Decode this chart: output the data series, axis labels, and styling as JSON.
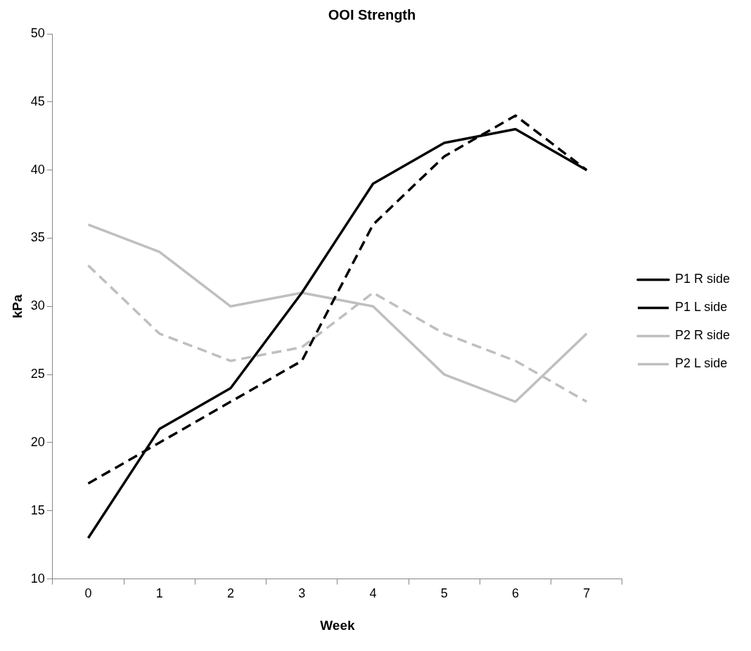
{
  "chart_data": {
    "type": "line",
    "title": "OOI Strength",
    "xlabel": "Week",
    "ylabel": "kPa",
    "categories": [
      "0",
      "1",
      "2",
      "3",
      "4",
      "5",
      "6",
      "7"
    ],
    "series": [
      {
        "name": "P1 R side",
        "color": "#000000",
        "line_style": "solid",
        "values": [
          13,
          21,
          24,
          31,
          39,
          42,
          43,
          40
        ]
      },
      {
        "name": "P1 L side",
        "color": "#000000",
        "line_style": "dashed",
        "values": [
          17,
          20,
          23,
          26,
          36,
          41,
          44,
          40
        ]
      },
      {
        "name": "P2 R side",
        "color": "#bfbfbf",
        "line_style": "solid",
        "values": [
          36,
          34,
          30,
          31,
          30,
          25,
          23,
          28
        ]
      },
      {
        "name": "P2 L side",
        "color": "#bfbfbf",
        "line_style": "dashed",
        "values": [
          33,
          28,
          26,
          27,
          31,
          28,
          26,
          23
        ]
      }
    ],
    "ylim": [
      10,
      50
    ],
    "yticks": [
      10,
      15,
      20,
      25,
      30,
      35,
      40,
      45,
      50
    ],
    "grid": false,
    "legend": "right",
    "marker": "none"
  }
}
